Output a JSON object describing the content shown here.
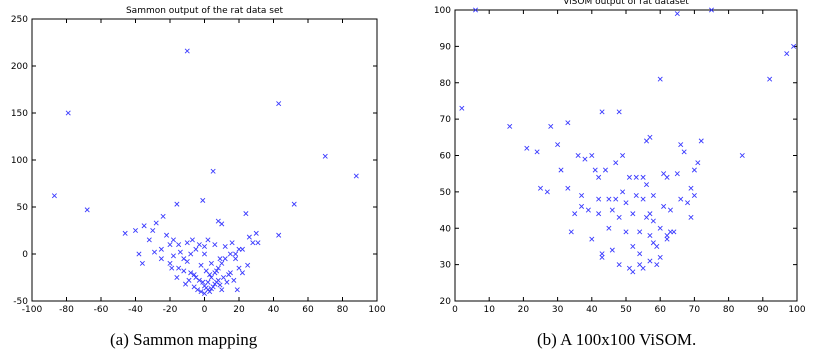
{
  "captions": {
    "a": "(a) Sammon mapping",
    "b": "(b) A 100x100 ViSOM."
  },
  "chart_data": [
    {
      "type": "scatter",
      "title": "Sammon output of the rat data set",
      "xlim": [
        -100,
        100
      ],
      "ylim": [
        -50,
        250
      ],
      "xticks": [
        -100,
        -80,
        -60,
        -40,
        -20,
        0,
        20,
        40,
        60,
        80,
        100
      ],
      "yticks": [
        -50,
        0,
        50,
        100,
        150,
        200,
        250
      ],
      "grid": false,
      "marker": "x",
      "color": "#3a3aff",
      "series": [
        {
          "points": [
            [
              -87,
              62
            ],
            [
              -79,
              150
            ],
            [
              -68,
              47
            ],
            [
              -10,
              216
            ],
            [
              43,
              160
            ],
            [
              70,
              104
            ],
            [
              88,
              83
            ],
            [
              52,
              53
            ],
            [
              5,
              88
            ],
            [
              -1,
              57
            ],
            [
              -16,
              53
            ],
            [
              24,
              43
            ],
            [
              43,
              20
            ],
            [
              -46,
              22
            ],
            [
              -40,
              25
            ],
            [
              -35,
              30
            ],
            [
              -28,
              33
            ],
            [
              -24,
              40
            ],
            [
              -30,
              25
            ],
            [
              -22,
              20
            ],
            [
              -18,
              15
            ],
            [
              -15,
              10
            ],
            [
              -25,
              5
            ],
            [
              -20,
              10
            ],
            [
              -10,
              12
            ],
            [
              -5,
              5
            ],
            [
              0,
              0
            ],
            [
              8,
              35
            ],
            [
              10,
              32
            ],
            [
              30,
              22
            ],
            [
              28,
              12
            ],
            [
              22,
              5
            ],
            [
              18,
              0
            ],
            [
              -38,
              0
            ],
            [
              -29,
              2
            ],
            [
              -25,
              -5
            ],
            [
              -20,
              -10
            ],
            [
              -15,
              -15
            ],
            [
              -12,
              -18
            ],
            [
              -8,
              -20
            ],
            [
              -5,
              -25
            ],
            [
              -3,
              -28
            ],
            [
              -1,
              -30
            ],
            [
              0,
              -34
            ],
            [
              1,
              -36
            ],
            [
              2,
              -38
            ],
            [
              3,
              -40
            ],
            [
              4,
              -37
            ],
            [
              5,
              -35
            ],
            [
              6,
              -32
            ],
            [
              7,
              -30
            ],
            [
              8,
              -28
            ],
            [
              9,
              -33
            ],
            [
              10,
              -38
            ],
            [
              -6,
              -35
            ],
            [
              -4,
              -38
            ],
            [
              -2,
              -40
            ],
            [
              0,
              -42
            ],
            [
              2,
              -30
            ],
            [
              4,
              -25
            ],
            [
              6,
              -20
            ],
            [
              8,
              -15
            ],
            [
              10,
              -10
            ],
            [
              12,
              -5
            ],
            [
              15,
              0
            ],
            [
              18,
              -5
            ],
            [
              20,
              -15
            ],
            [
              22,
              -20
            ],
            [
              25,
              -12
            ],
            [
              14,
              -22
            ],
            [
              -12,
              -5
            ],
            [
              -14,
              2
            ],
            [
              -18,
              -2
            ],
            [
              -10,
              -8
            ],
            [
              -8,
              0
            ],
            [
              -3,
              10
            ],
            [
              2,
              15
            ],
            [
              6,
              10
            ],
            [
              12,
              8
            ],
            [
              16,
              12
            ],
            [
              -2,
              -12
            ],
            [
              4,
              -10
            ],
            [
              1,
              -18
            ],
            [
              -6,
              -22
            ],
            [
              3,
              -22
            ],
            [
              7,
              -18
            ],
            [
              11,
              -25
            ],
            [
              -9,
              -28
            ],
            [
              13,
              -30
            ],
            [
              -11,
              -32
            ],
            [
              15,
              -20
            ],
            [
              17,
              -28
            ],
            [
              20,
              5
            ],
            [
              26,
              18
            ],
            [
              31,
              12
            ],
            [
              -32,
              15
            ],
            [
              -36,
              -10
            ],
            [
              -16,
              -25
            ],
            [
              19,
              -38
            ],
            [
              9,
              -5
            ],
            [
              -7,
              15
            ],
            [
              0,
              8
            ],
            [
              -19,
              -15
            ]
          ]
        }
      ]
    },
    {
      "type": "scatter",
      "title": "ViSOM output of rat dataset",
      "xlim": [
        0,
        100
      ],
      "ylim": [
        20,
        100
      ],
      "xticks": [
        0,
        10,
        20,
        30,
        40,
        50,
        60,
        70,
        80,
        90,
        100
      ],
      "yticks": [
        20,
        30,
        40,
        50,
        60,
        70,
        80,
        90,
        100
      ],
      "grid": false,
      "marker": "x",
      "color": "#3a3aff",
      "series": [
        {
          "points": [
            [
              2,
              73
            ],
            [
              6,
              100
            ],
            [
              65,
              99
            ],
            [
              75,
              100
            ],
            [
              99,
              90
            ],
            [
              97,
              88
            ],
            [
              92,
              81
            ],
            [
              60,
              81
            ],
            [
              84,
              60
            ],
            [
              16,
              68
            ],
            [
              21,
              62
            ],
            [
              24,
              61
            ],
            [
              25,
              51
            ],
            [
              27,
              50
            ],
            [
              28,
              68
            ],
            [
              30,
              63
            ],
            [
              31,
              56
            ],
            [
              33,
              69
            ],
            [
              33,
              51
            ],
            [
              34,
              39
            ],
            [
              35,
              44
            ],
            [
              36,
              60
            ],
            [
              37,
              49
            ],
            [
              37,
              46
            ],
            [
              38,
              59
            ],
            [
              39,
              45
            ],
            [
              40,
              60
            ],
            [
              40,
              37
            ],
            [
              41,
              56
            ],
            [
              42,
              54
            ],
            [
              42,
              48
            ],
            [
              42,
              44
            ],
            [
              43,
              72
            ],
            [
              43,
              33
            ],
            [
              43,
              32
            ],
            [
              44,
              56
            ],
            [
              45,
              48
            ],
            [
              45,
              40
            ],
            [
              46,
              45
            ],
            [
              46,
              34
            ],
            [
              47,
              58
            ],
            [
              47,
              48
            ],
            [
              48,
              72
            ],
            [
              48,
              43
            ],
            [
              48,
              30
            ],
            [
              49,
              60
            ],
            [
              49,
              50
            ],
            [
              50,
              47
            ],
            [
              50,
              39
            ],
            [
              51,
              54
            ],
            [
              51,
              29
            ],
            [
              52,
              44
            ],
            [
              52,
              28
            ],
            [
              52,
              35
            ],
            [
              53,
              54
            ],
            [
              53,
              49
            ],
            [
              54,
              39
            ],
            [
              54,
              33
            ],
            [
              55,
              54
            ],
            [
              55,
              48
            ],
            [
              55,
              29
            ],
            [
              56,
              64
            ],
            [
              56,
              52
            ],
            [
              56,
              43
            ],
            [
              57,
              65
            ],
            [
              57,
              44
            ],
            [
              57,
              38
            ],
            [
              57,
              31
            ],
            [
              58,
              49
            ],
            [
              58,
              42
            ],
            [
              59,
              35
            ],
            [
              59,
              30
            ],
            [
              60,
              40
            ],
            [
              61,
              55
            ],
            [
              61,
              46
            ],
            [
              62,
              54
            ],
            [
              62,
              38
            ],
            [
              62,
              37
            ],
            [
              63,
              45
            ],
            [
              63,
              39
            ],
            [
              64,
              39
            ],
            [
              65,
              55
            ],
            [
              66,
              48
            ],
            [
              66,
              63
            ],
            [
              67,
              61
            ],
            [
              68,
              47
            ],
            [
              69,
              43
            ],
            [
              69,
              51
            ],
            [
              70,
              56
            ],
            [
              70,
              49
            ],
            [
              71,
              58
            ],
            [
              72,
              64
            ],
            [
              58,
              36
            ],
            [
              54,
              30
            ],
            [
              60,
              32
            ]
          ]
        }
      ]
    }
  ]
}
